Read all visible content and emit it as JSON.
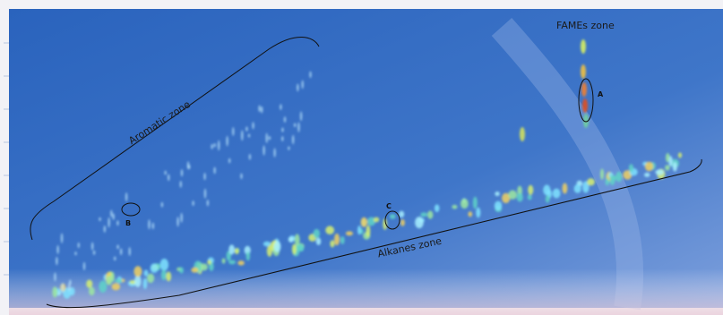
{
  "zones": [
    "FAMEs zone",
    "Aromatic zone",
    "Alkanes zone"
  ],
  "markers": [
    "A",
    "B",
    "C"
  ]
}
